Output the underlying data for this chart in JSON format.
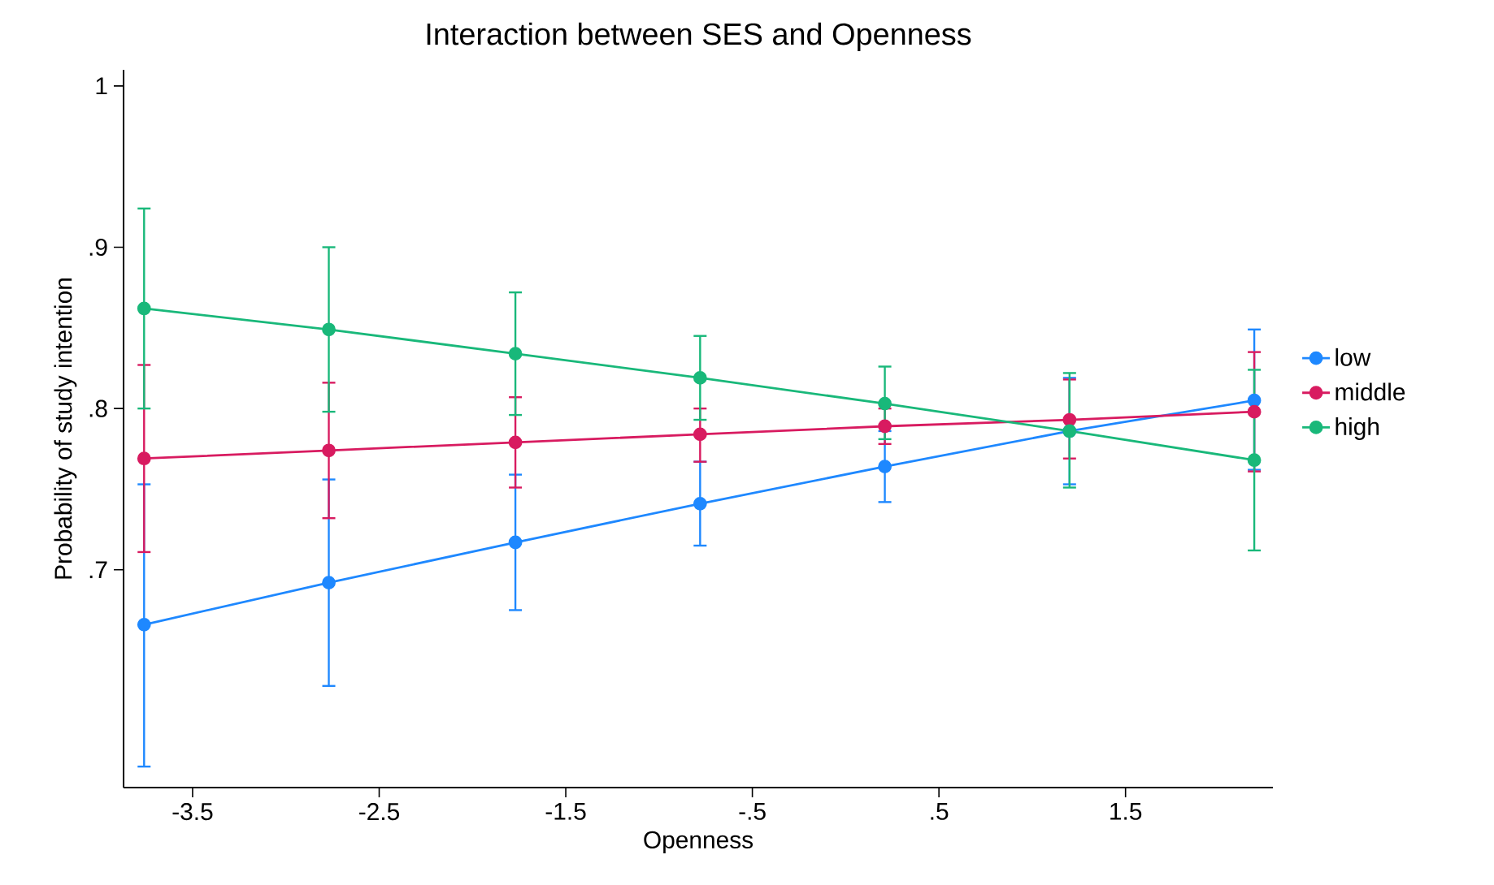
{
  "chart_data": {
    "type": "line",
    "title": "Interaction between SES and Openness",
    "xlabel": "Openness",
    "ylabel": "Probability of study intention",
    "x": [
      -3.76,
      -2.77,
      -1.77,
      -0.78,
      0.21,
      1.2,
      2.19
    ],
    "series": [
      {
        "name": "low",
        "color": "#1e88ff",
        "values": [
          0.666,
          0.692,
          0.717,
          0.741,
          0.764,
          0.786,
          0.805
        ],
        "errors": [
          [
            0.578,
            0.753
          ],
          [
            0.628,
            0.756
          ],
          [
            0.675,
            0.759
          ],
          [
            0.715,
            0.767
          ],
          [
            0.742,
            0.786
          ],
          [
            0.753,
            0.819
          ],
          [
            0.762,
            0.849
          ]
        ]
      },
      {
        "name": "middle",
        "color": "#d81b60",
        "values": [
          0.769,
          0.774,
          0.779,
          0.784,
          0.789,
          0.793,
          0.798
        ],
        "errors": [
          [
            0.711,
            0.827
          ],
          [
            0.732,
            0.816
          ],
          [
            0.751,
            0.807
          ],
          [
            0.767,
            0.8
          ],
          [
            0.778,
            0.8
          ],
          [
            0.769,
            0.818
          ],
          [
            0.761,
            0.835
          ]
        ]
      },
      {
        "name": "high",
        "color": "#19b87a",
        "values": [
          0.862,
          0.849,
          0.834,
          0.819,
          0.803,
          0.786,
          0.768
        ],
        "errors": [
          [
            0.8,
            0.924
          ],
          [
            0.798,
            0.9
          ],
          [
            0.796,
            0.872
          ],
          [
            0.793,
            0.845
          ],
          [
            0.781,
            0.826
          ],
          [
            0.751,
            0.822
          ],
          [
            0.712,
            0.824
          ]
        ]
      }
    ],
    "xlim": [
      -3.87,
      2.29
    ],
    "ylim": [
      0.565,
      1.01
    ],
    "xticks": [
      -3.5,
      -2.5,
      -1.5,
      {
        "value": -0.5,
        "label": "-.5"
      },
      {
        "value": 0.5,
        "label": ".5"
      },
      1.5
    ],
    "yticks": [
      {
        "value": 0.7,
        "label": ".7"
      },
      {
        "value": 0.8,
        "label": ".8"
      },
      {
        "value": 0.9,
        "label": ".9"
      },
      1
    ],
    "grid": false,
    "legend": "right",
    "marker": "circle",
    "line_style": "solid"
  }
}
